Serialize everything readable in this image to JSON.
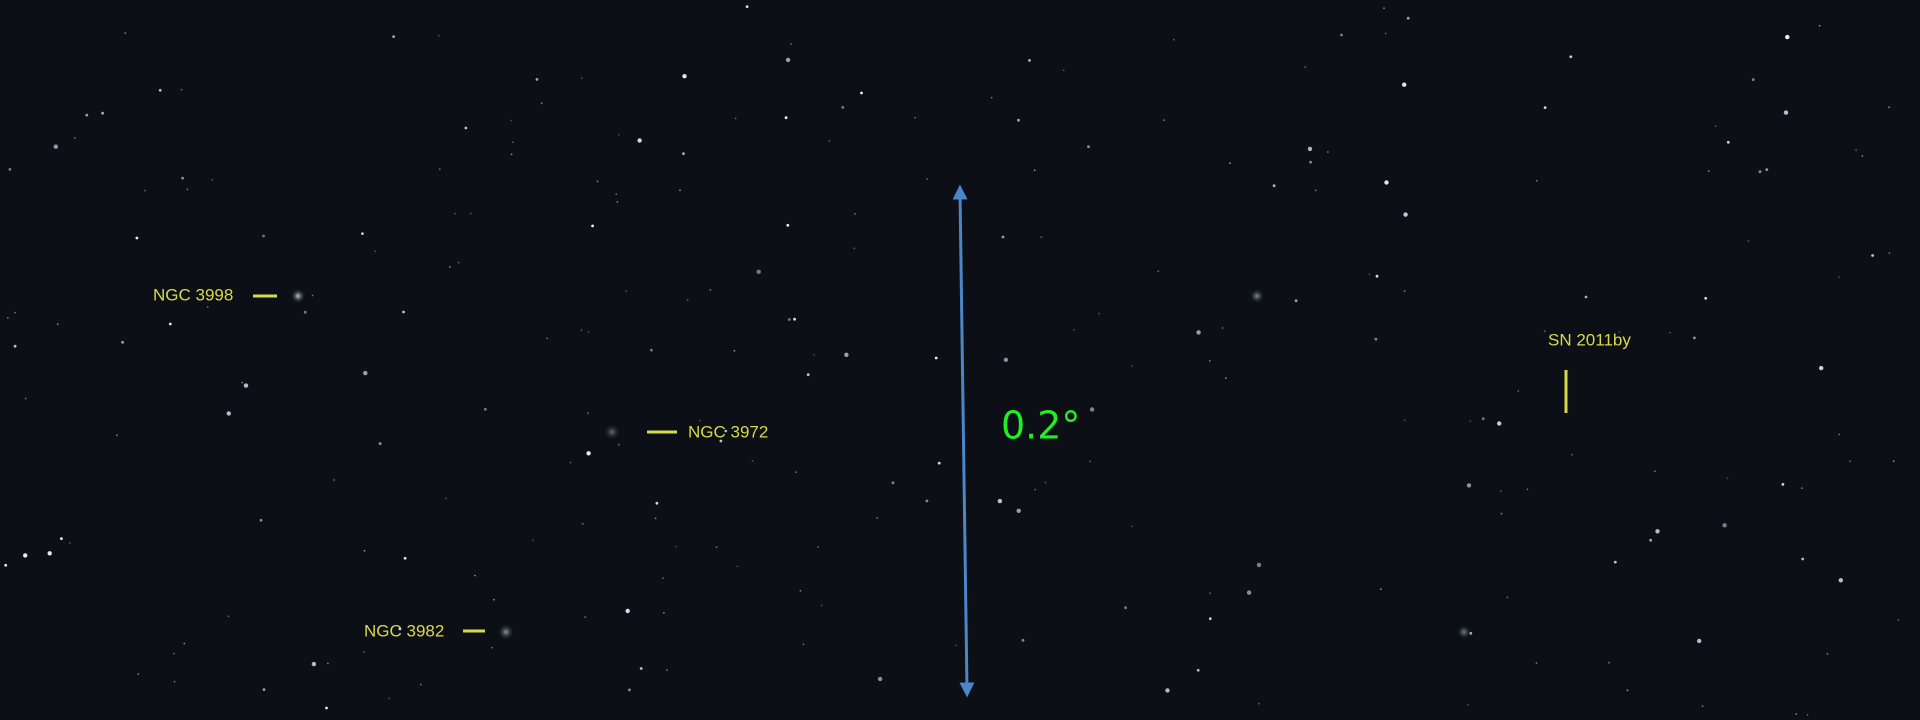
{
  "labels": [
    "NGC 3998",
    "NGC 3972",
    "NGC 3982",
    "SN 2011by"
  ],
  "scale": "0.2°"
}
